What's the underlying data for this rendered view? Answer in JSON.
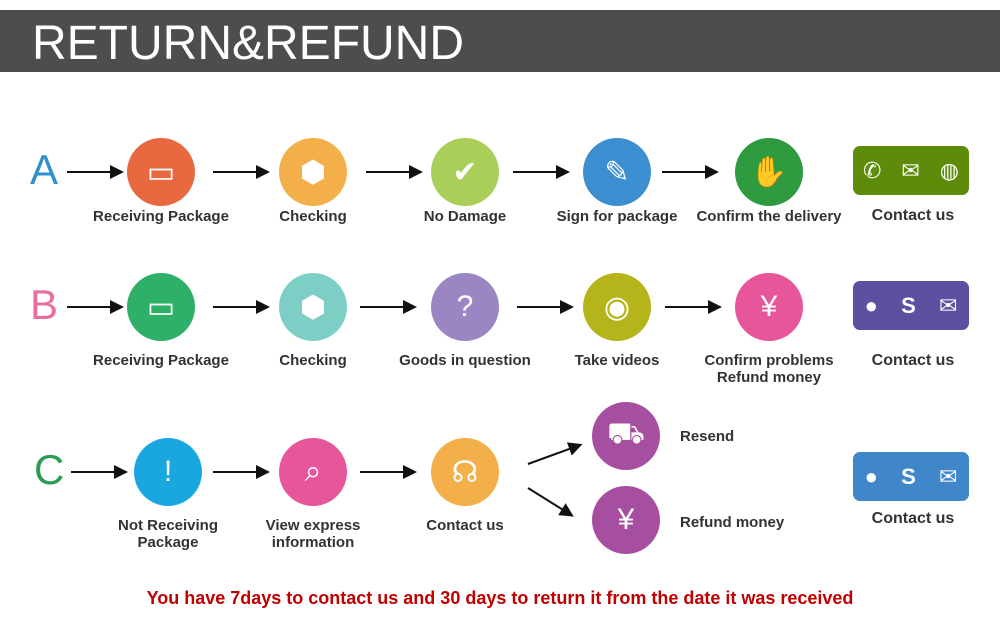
{
  "title": "RETURN&REFUND",
  "rows": [
    {
      "letter": "A",
      "letter_color": "#2f8fcf",
      "steps": [
        {
          "label": "Receiving Package",
          "icon": "box-icon",
          "color": "#e8693f"
        },
        {
          "label": "Checking",
          "icon": "open-box-icon",
          "color": "#f3b04a"
        },
        {
          "label": "No Damage",
          "icon": "check-circle-icon",
          "color": "#a9cf5a"
        },
        {
          "label": "Sign for package",
          "icon": "sign-icon",
          "color": "#3b8fd0"
        },
        {
          "label": "Confirm the delivery",
          "icon": "handshake-icon",
          "color": "#2e9b3e"
        }
      ],
      "contact": {
        "label": "Contact us",
        "color": "#5e8c0a",
        "icons": [
          "phone-icon",
          "mail-icon",
          "wechat-icon"
        ]
      }
    },
    {
      "letter": "B",
      "letter_color": "#e56fa0",
      "steps": [
        {
          "label": "Receiving Package",
          "icon": "box-icon",
          "color": "#2fb068"
        },
        {
          "label": "Checking",
          "icon": "open-box-icon",
          "color": "#7dcfc6"
        },
        {
          "label": "Goods in question",
          "icon": "question-icon",
          "color": "#9b86c4"
        },
        {
          "label": "Take videos",
          "icon": "camera-icon",
          "color": "#b5b41a"
        },
        {
          "label": "Confirm problems\nRefund money",
          "icon": "yen-refund-icon",
          "color": "#e7559a"
        }
      ],
      "contact": {
        "label": "Contact us",
        "color": "#5e4fa0",
        "icons": [
          "chat-icon",
          "skype-icon",
          "mail-icon"
        ]
      }
    },
    {
      "letter": "C",
      "letter_color": "#2e9b55",
      "steps": [
        {
          "label": "Not Receiving\nPackage",
          "icon": "truck-alert-icon",
          "color": "#1aa7e0"
        },
        {
          "label": "View express\ninformation",
          "icon": "document-search-icon",
          "color": "#e7559a"
        },
        {
          "label": "Contact us",
          "icon": "headset-icon",
          "color": "#f3b04a"
        }
      ],
      "outcomes": [
        {
          "label": "Resend",
          "icon": "truck-icon",
          "color": "#a64fa0"
        },
        {
          "label": "Refund money",
          "icon": "yen-refund-icon",
          "color": "#a64fa0"
        }
      ],
      "contact": {
        "label": "Contact us",
        "color": "#3f87c8",
        "icons": [
          "chat-icon",
          "skype-icon",
          "mail-icon"
        ]
      }
    }
  ],
  "footer": "You have 7days to contact us and 30 days to return it from the date it was received"
}
